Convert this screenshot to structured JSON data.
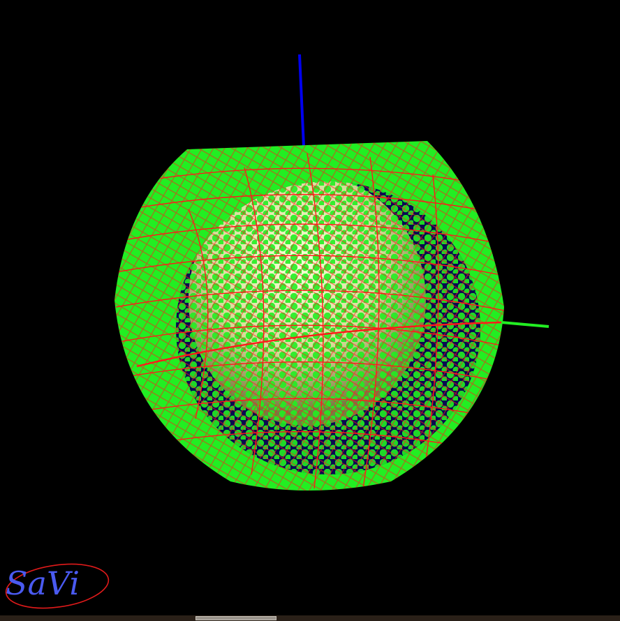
{
  "app": {
    "logo_text": "SaVi"
  },
  "scene": {
    "background_color": "#000000",
    "globe_color": "#e8f0b0",
    "ocean_color": "#0a0a50",
    "satellite_coverage_color": "#22ee22",
    "orbit_track_color": "#ff1a1a",
    "z_axis_color": "#0000ee",
    "y_axis_color": "#22ee22",
    "logo_text_color": "#4a5af0",
    "logo_ellipse_color": "#e01a1a"
  },
  "icons": {
    "logo": "savi-logo-icon"
  }
}
